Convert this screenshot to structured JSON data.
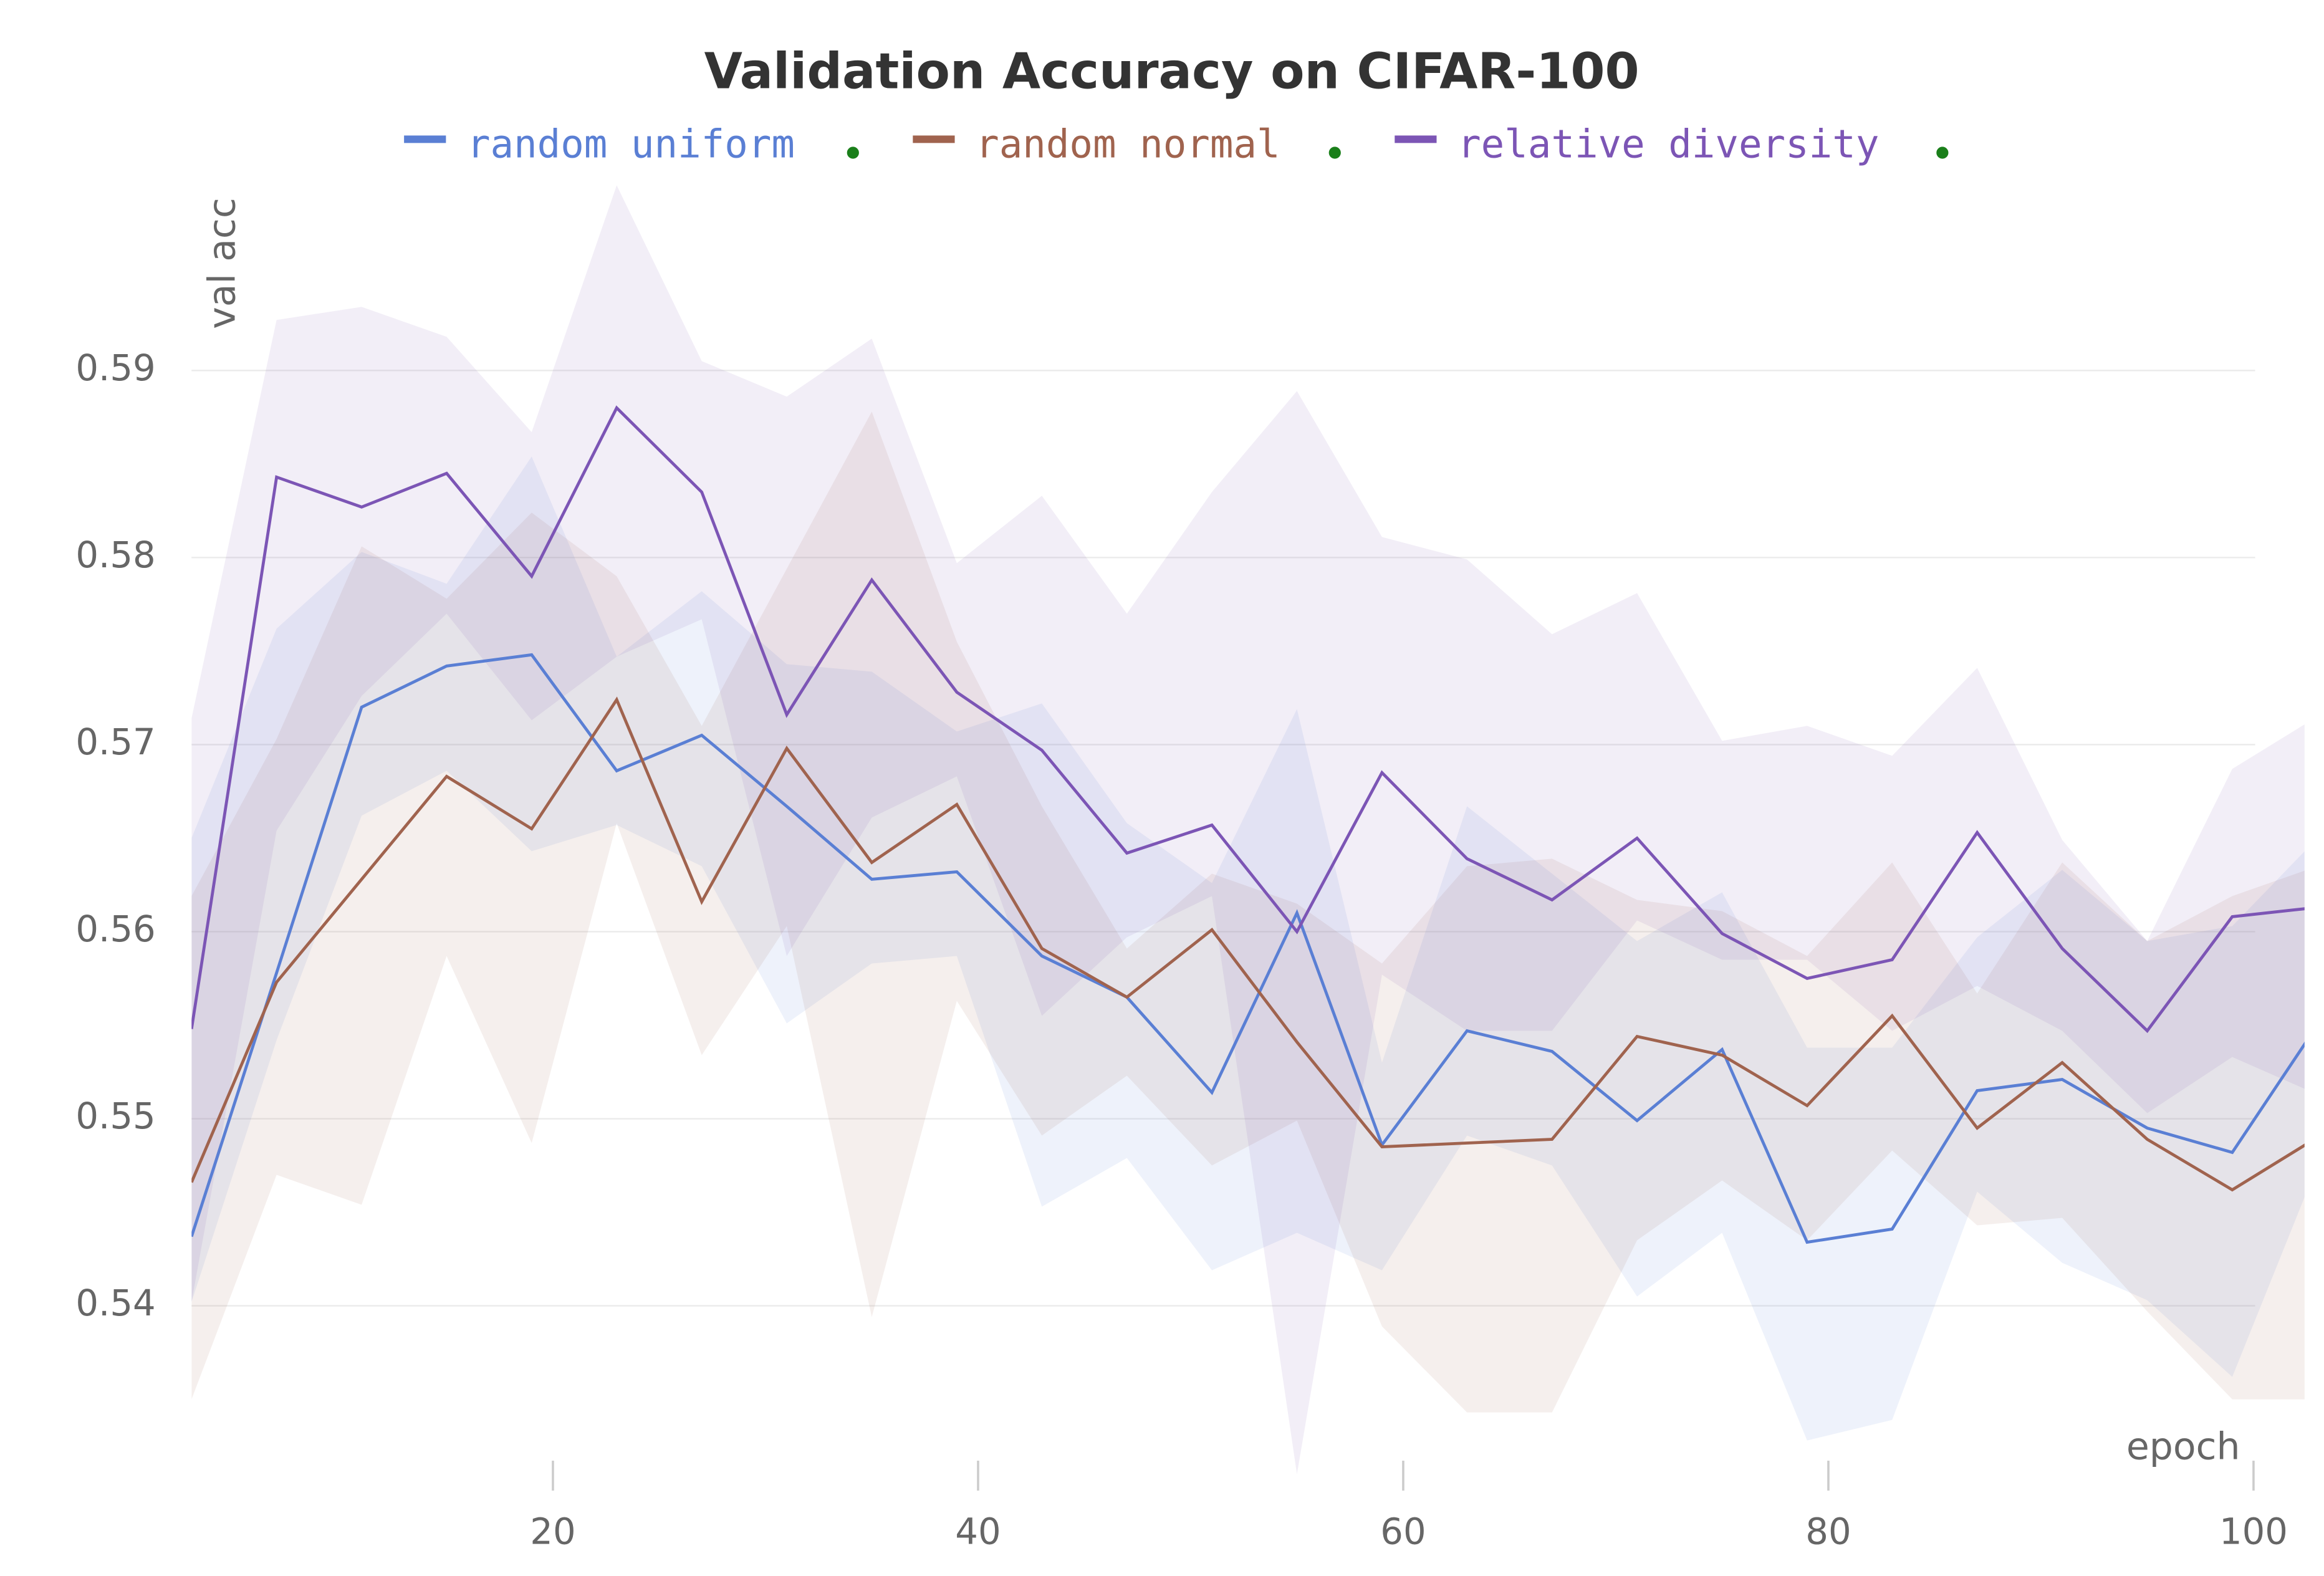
{
  "chart_data": {
    "type": "line",
    "title": "Validation Accuracy on CIFAR-100",
    "x_label": "epoch",
    "y_label": "val acc",
    "x": [
      3,
      7,
      11,
      15,
      19,
      23,
      27,
      31,
      35,
      39,
      43,
      47,
      51,
      55,
      59,
      63,
      67,
      71,
      75,
      79,
      83,
      87,
      91,
      95,
      99,
      103
    ],
    "xlim": [
      3,
      102.4
    ],
    "xticks": [
      20,
      40,
      60,
      80,
      100
    ],
    "ylim": [
      0.5306,
      0.5998
    ],
    "yticks": [
      0.54,
      0.55,
      0.56,
      0.57,
      0.58,
      0.59
    ],
    "grid": true,
    "series": [
      {
        "name": "random uniform",
        "color": "#5a7fd4",
        "values": [
          0.5437,
          0.5578,
          0.572,
          0.5742,
          0.5748,
          0.5686,
          0.5705,
          0.5667,
          0.5628,
          0.5632,
          0.5587,
          0.5565,
          0.5514,
          0.561,
          0.5486,
          0.5547,
          0.5536,
          0.5499,
          0.5537,
          0.5434,
          0.5441,
          0.5515,
          0.5521,
          0.5495,
          0.5482,
          0.555
        ],
        "upper": [
          0.565,
          0.5762,
          0.5803,
          0.5786,
          0.5854,
          0.5747,
          0.5782,
          0.5743,
          0.5739,
          0.5707,
          0.5722,
          0.5658,
          0.5626,
          0.5719,
          0.553,
          0.5667,
          0.5631,
          0.5595,
          0.5621,
          0.5538,
          0.5538,
          0.5597,
          0.5633,
          0.5595,
          0.5603,
          0.565
        ],
        "lower": [
          0.5402,
          0.5542,
          0.5662,
          0.5686,
          0.5643,
          0.5657,
          0.5635,
          0.5551,
          0.5583,
          0.5587,
          0.5453,
          0.5479,
          0.5419,
          0.5439,
          0.5419,
          0.5491,
          0.5475,
          0.5405,
          0.5439,
          0.5328,
          0.5339,
          0.5461,
          0.5423,
          0.5403,
          0.5362,
          0.5475
        ]
      },
      {
        "name": "random normal",
        "color": "#a0634e",
        "values": [
          0.5466,
          0.5573,
          0.5628,
          0.5683,
          0.5655,
          0.5724,
          0.5616,
          0.5698,
          0.5637,
          0.5668,
          0.5591,
          0.5565,
          0.5601,
          0.5541,
          0.5485,
          0.5487,
          0.5489,
          0.5544,
          0.5534,
          0.5507,
          0.5555,
          0.5495,
          0.553,
          0.5489,
          0.5462,
          0.549
        ],
        "upper": [
          0.5619,
          0.5703,
          0.5806,
          0.5778,
          0.5824,
          0.579,
          0.571,
          0.5794,
          0.5878,
          0.5755,
          0.5667,
          0.5591,
          0.5631,
          0.5615,
          0.5583,
          0.5635,
          0.5639,
          0.5617,
          0.5611,
          0.5587,
          0.5637,
          0.5567,
          0.5637,
          0.5595,
          0.5619,
          0.5635
        ],
        "lower": [
          0.535,
          0.547,
          0.5454,
          0.5587,
          0.5487,
          0.5658,
          0.5534,
          0.5603,
          0.5394,
          0.5563,
          0.5491,
          0.5523,
          0.5475,
          0.5499,
          0.5389,
          0.5343,
          0.5343,
          0.5435,
          0.5467,
          0.5435,
          0.5483,
          0.5443,
          0.5447,
          0.5397,
          0.535,
          0.535
        ]
      },
      {
        "name": "relative diversity",
        "color": "#7c55b5",
        "values": [
          0.5548,
          0.5843,
          0.5827,
          0.5845,
          0.579,
          0.588,
          0.5835,
          0.5716,
          0.5788,
          0.5728,
          0.5697,
          0.5642,
          0.5657,
          0.56,
          0.5685,
          0.5639,
          0.5617,
          0.565,
          0.5599,
          0.5575,
          0.5585,
          0.5653,
          0.5591,
          0.5547,
          0.5608,
          0.5613
        ],
        "upper": [
          0.5714,
          0.5927,
          0.5934,
          0.5918,
          0.5867,
          0.5999,
          0.5905,
          0.5886,
          0.5917,
          0.5797,
          0.5833,
          0.577,
          0.5835,
          0.5889,
          0.5811,
          0.5799,
          0.5759,
          0.5781,
          0.5702,
          0.571,
          0.5694,
          0.5741,
          0.5649,
          0.5595,
          0.5687,
          0.5715
        ],
        "lower": [
          0.5402,
          0.5654,
          0.5726,
          0.577,
          0.5713,
          0.5747,
          0.5767,
          0.5587,
          0.5661,
          0.5683,
          0.5555,
          0.5597,
          0.5619,
          0.531,
          0.5577,
          0.5547,
          0.5547,
          0.5606,
          0.5585,
          0.5585,
          0.5547,
          0.5571,
          0.5547,
          0.5503,
          0.5533,
          0.5513
        ]
      }
    ]
  }
}
